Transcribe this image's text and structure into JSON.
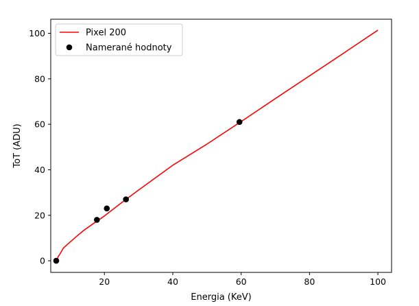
{
  "chart_data": {
    "type": "line",
    "xlabel": "Energia (KeV)",
    "ylabel": "ToT (ADU)",
    "xlim": [
      4.3,
      104.0
    ],
    "ylim": [
      -5.1,
      106.2
    ],
    "x_ticks": [
      20,
      40,
      60,
      80,
      100
    ],
    "y_ticks": [
      0,
      20,
      40,
      60,
      80,
      100
    ],
    "grid": false,
    "legend_position": "top-left",
    "series": [
      {
        "name": "Pixel 200",
        "kind": "line",
        "color": "#ff0000",
        "x": [
          6,
          6.5,
          7,
          8,
          10,
          12,
          14,
          17,
          20,
          25,
          30,
          40,
          50,
          60,
          70,
          80,
          90,
          100
        ],
        "y": [
          0.0,
          1.9,
          3.0,
          5.6,
          8.3,
          10.9,
          13.4,
          16.6,
          19.7,
          25.5,
          31.1,
          42.0,
          51.3,
          61.2,
          71.3,
          81.3,
          91.3,
          101.4
        ]
      },
      {
        "name": "Namerané hodnoty",
        "kind": "scatter",
        "color": "#000000",
        "x": [
          5.9,
          17.8,
          20.7,
          26.3,
          59.5
        ],
        "y": [
          0,
          18,
          23,
          27,
          61
        ]
      }
    ]
  }
}
